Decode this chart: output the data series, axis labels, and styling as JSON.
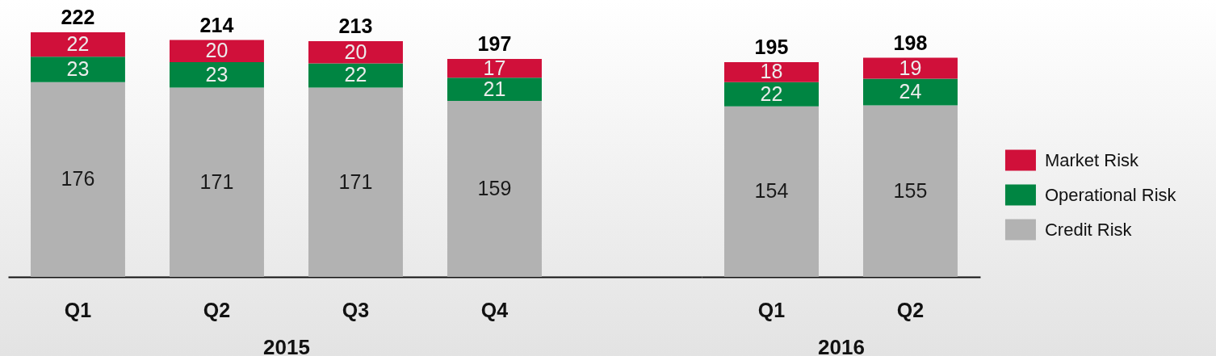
{
  "chart_data": [
    {
      "type": "bar",
      "stacked": true,
      "xlabel": "2015",
      "categories": [
        "Q1",
        "Q2",
        "Q3",
        "Q4"
      ],
      "series": [
        {
          "color": "#b2b2b2",
          "values": [
            176,
            171,
            171,
            159
          ]
        },
        {
          "color": "#008542",
          "values": [
            23,
            23,
            22,
            21
          ]
        },
        {
          "color": "#d0103a",
          "values": [
            22,
            20,
            20,
            17
          ]
        }
      ],
      "totals": [
        "222",
        "214",
        "213",
        "197"
      ],
      "data_labels": true,
      "legend": false
    },
    {
      "type": "bar",
      "stacked": true,
      "xlabel": "2016",
      "categories": [
        "Q1",
        "Q2"
      ],
      "series": [
        {
          "name": "Credit Risk",
          "color": "#b2b2b2",
          "values": [
            154,
            155
          ]
        },
        {
          "name": "Operational Risk",
          "color": "#008542",
          "values": [
            22,
            24
          ]
        },
        {
          "name": "Market Risk",
          "color": "#d0103a",
          "values": [
            18,
            19
          ]
        }
      ],
      "totals": [
        "195",
        "198"
      ],
      "data_labels": true,
      "legend": "right"
    }
  ]
}
